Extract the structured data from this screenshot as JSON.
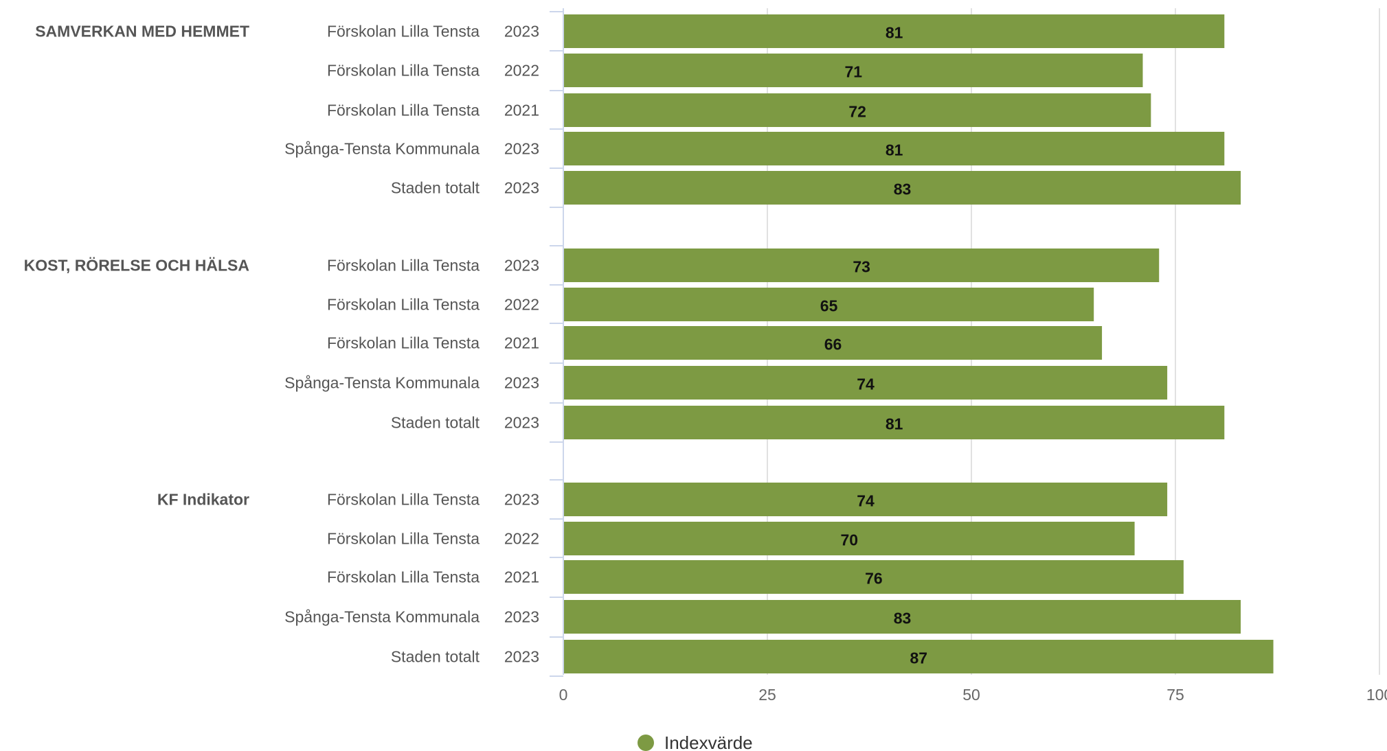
{
  "chart_data": {
    "type": "bar",
    "orientation": "horizontal",
    "xlim": [
      0,
      100
    ],
    "x_ticks": [
      "0",
      "25",
      "50",
      "75",
      "100"
    ],
    "grid": true,
    "legend_position": "bottom",
    "series": [
      {
        "name": "Indexvärde",
        "color": "#7d9a43"
      }
    ],
    "groups": [
      {
        "label": "SAMVERKAN MED HEMMET",
        "rows": [
          {
            "unit": "Förskolan Lilla Tensta",
            "year": "2023",
            "value": 81
          },
          {
            "unit": "Förskolan Lilla Tensta",
            "year": "2022",
            "value": 71
          },
          {
            "unit": "Förskolan Lilla Tensta",
            "year": "2021",
            "value": 72
          },
          {
            "unit": "Spånga-Tensta Kommunala",
            "year": "2023",
            "value": 81
          },
          {
            "unit": "Staden totalt",
            "year": "2023",
            "value": 83
          }
        ]
      },
      {
        "label": "KOST, RÖRELSE OCH HÄLSA",
        "rows": [
          {
            "unit": "Förskolan Lilla Tensta",
            "year": "2023",
            "value": 73
          },
          {
            "unit": "Förskolan Lilla Tensta",
            "year": "2022",
            "value": 65
          },
          {
            "unit": "Förskolan Lilla Tensta",
            "year": "2021",
            "value": 66
          },
          {
            "unit": "Spånga-Tensta Kommunala",
            "year": "2023",
            "value": 74
          },
          {
            "unit": "Staden totalt",
            "year": "2023",
            "value": 81
          }
        ]
      },
      {
        "label": "KF Indikator",
        "rows": [
          {
            "unit": "Förskolan Lilla Tensta",
            "year": "2023",
            "value": 74
          },
          {
            "unit": "Förskolan Lilla Tensta",
            "year": "2022",
            "value": 70
          },
          {
            "unit": "Förskolan Lilla Tensta",
            "year": "2021",
            "value": 76
          },
          {
            "unit": "Spånga-Tensta Kommunala",
            "year": "2023",
            "value": 83
          },
          {
            "unit": "Staden totalt",
            "year": "2023",
            "value": 87
          }
        ]
      }
    ]
  }
}
